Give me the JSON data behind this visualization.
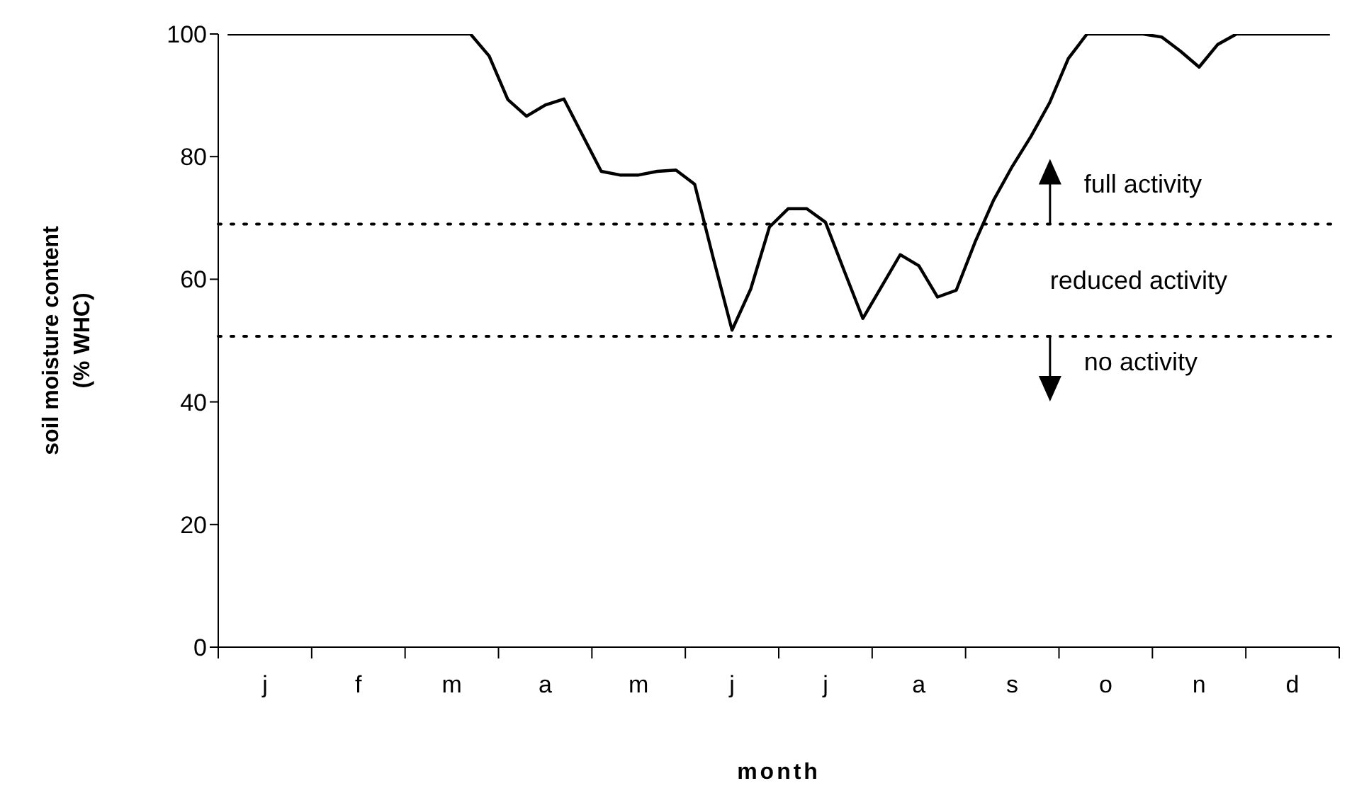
{
  "chart_data": {
    "type": "line",
    "xlabel": "month",
    "ylabel": "soil moisture content\n(% WHC)",
    "categories": [
      null,
      null,
      "j",
      null,
      null,
      null,
      null,
      "f",
      null,
      null,
      null,
      null,
      "m",
      null,
      null,
      null,
      null,
      "a",
      null,
      null,
      null,
      null,
      "m",
      null,
      null,
      null,
      null,
      "j",
      null,
      null,
      null,
      null,
      "j",
      null,
      null,
      null,
      null,
      "a",
      null,
      null,
      null,
      null,
      "s",
      null,
      null,
      null,
      null,
      "o",
      null,
      null,
      null,
      null,
      "n",
      null,
      null,
      null,
      null,
      "d",
      null,
      null
    ],
    "series": [
      {
        "color": "#000000",
        "values": [
          100,
          100,
          100,
          100,
          100,
          100,
          100,
          100,
          100,
          100,
          100,
          100,
          100,
          100,
          96.4,
          89.3,
          86.6,
          88.4,
          89.4,
          83.5,
          77.6,
          77,
          77,
          77.6,
          77.8,
          75.5,
          63.4,
          51.7,
          58.4,
          68.5,
          71.5,
          71.5,
          69.3,
          61.4,
          53.6,
          58.8,
          64,
          62.2,
          57.1,
          58.2,
          66,
          72.9,
          78.4,
          83.3,
          88.8,
          96,
          100,
          100,
          100,
          100,
          99.5,
          97.2,
          94.6,
          98.3,
          100,
          100,
          100,
          100,
          100,
          100
        ]
      }
    ],
    "ylim": [
      0,
      100
    ],
    "yticks": [
      0,
      20,
      40,
      60,
      80,
      100
    ],
    "ref_lines": [
      {
        "axis": "y",
        "value": 69,
        "color": "#000000",
        "line_style": "dotted"
      },
      {
        "axis": "y",
        "value": 50.7,
        "color": "#000000",
        "line_style": "dotted"
      }
    ],
    "annotations": [
      {
        "text": "full activity",
        "y": 69
      },
      "reduced activity",
      {
        "text": "no activity",
        "y": 50.7
      }
    ],
    "grid": false,
    "legend": false,
    "marker": "none",
    "line_style": "solid"
  }
}
